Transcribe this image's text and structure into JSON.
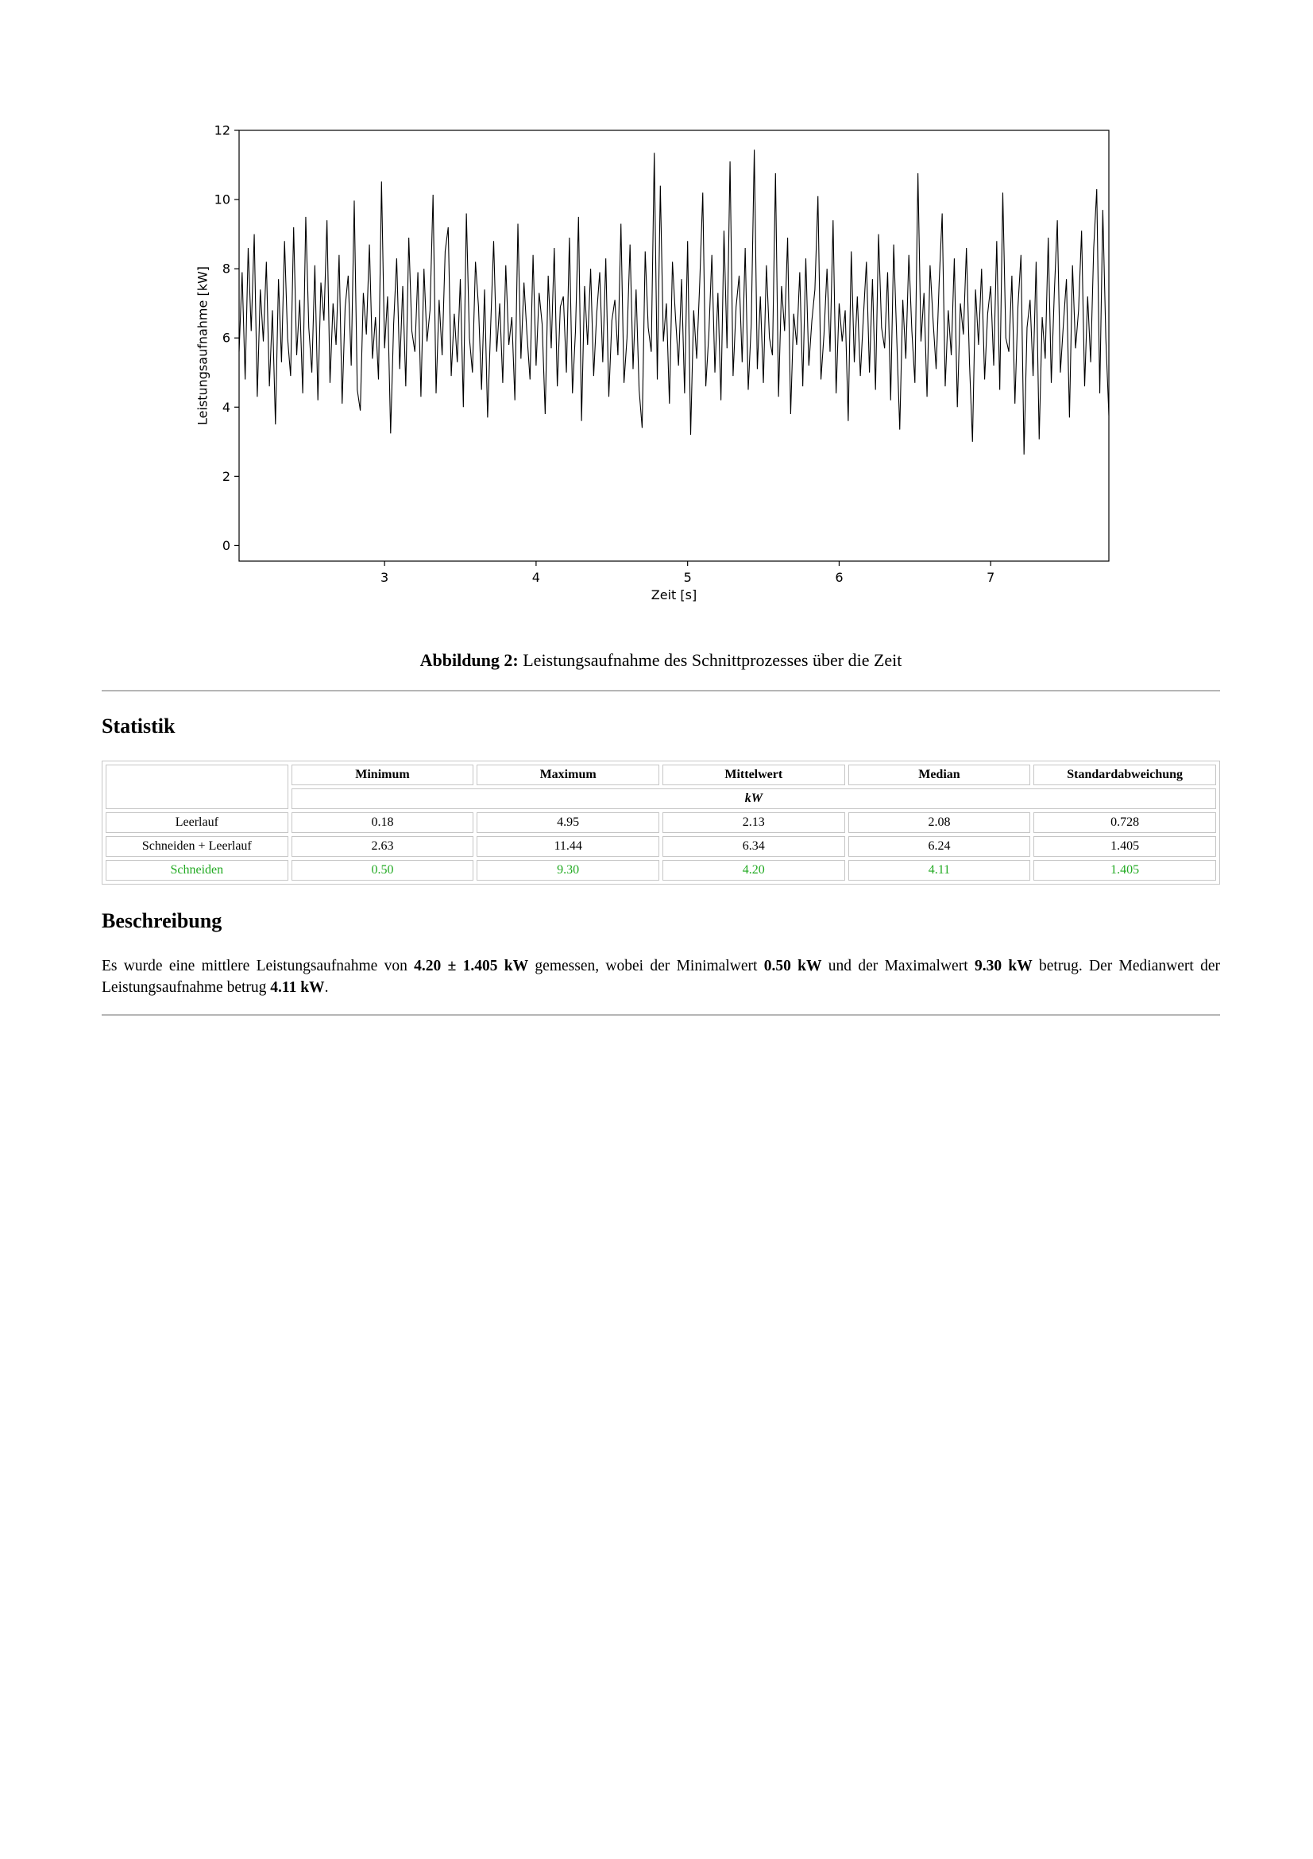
{
  "figure": {
    "label": "Abbildung 2:",
    "caption": "Leistungsaufnahme des Schnittprozesses über die Zeit"
  },
  "statistics": {
    "heading": "Statistik",
    "columns": [
      "Minimum",
      "Maximum",
      "Mittelwert",
      "Median",
      "Standardabweichung"
    ],
    "unit": "kW",
    "rows": [
      {
        "label": "Leerlauf",
        "values": [
          "0.18",
          "4.95",
          "2.13",
          "2.08",
          "0.728"
        ]
      },
      {
        "label": "Schneiden + Leerlauf",
        "values": [
          "2.63",
          "11.44",
          "6.34",
          "6.24",
          "1.405"
        ]
      },
      {
        "label": "Schneiden",
        "values": [
          "0.50",
          "9.30",
          "4.20",
          "4.11",
          "1.405"
        ],
        "highlight": true
      }
    ],
    "highlight_color": "#22aa22"
  },
  "description": {
    "heading": "Beschreibung",
    "t1": "Es wurde eine mittlere Leistungsaufnahme von ",
    "mean": "4.20 ± 1.405 kW",
    "t2": " gemessen, wobei der Minimalwert ",
    "min": "0.50 kW",
    "t3": " und der Maximalwert ",
    "max": "9.30 kW",
    "t4": " betrug. Der Medianwert der Leistungsaufnahme betrug ",
    "median": "4.11 kW",
    "t5": "."
  },
  "chart_data": {
    "type": "line",
    "xlabel": "Zeit [s]",
    "ylabel": "Leistungsaufnahme [kW]",
    "xlim": [
      2.04,
      7.78
    ],
    "ylim": [
      -0.45,
      12.0
    ],
    "xticks": [
      3,
      4,
      5,
      6,
      7
    ],
    "yticks": [
      0,
      2,
      4,
      6,
      8,
      10,
      12
    ],
    "grid": false,
    "line_color": "#000000",
    "series": [
      {
        "x": [
          2.04,
          2.06,
          2.08,
          2.1,
          2.12,
          2.14,
          2.16,
          2.18,
          2.2,
          2.22,
          2.24,
          2.26,
          2.28,
          2.3,
          2.32,
          2.34,
          2.36,
          2.38,
          2.4,
          2.42,
          2.44,
          2.46,
          2.48,
          2.5,
          2.52,
          2.54,
          2.56,
          2.58,
          2.6,
          2.62,
          2.64,
          2.66,
          2.68,
          2.7,
          2.72,
          2.74,
          2.76,
          2.78,
          2.8,
          2.82,
          2.84,
          2.86,
          2.88,
          2.9,
          2.92,
          2.94,
          2.96,
          2.98,
          3.0,
          3.02,
          3.04,
          3.06,
          3.08,
          3.1,
          3.12,
          3.14,
          3.16,
          3.18,
          3.2,
          3.22,
          3.24,
          3.26,
          3.28,
          3.3,
          3.32,
          3.34,
          3.36,
          3.38,
          3.4,
          3.42,
          3.44,
          3.46,
          3.48,
          3.5,
          3.52,
          3.54,
          3.56,
          3.58,
          3.6,
          3.62,
          3.64,
          3.66,
          3.68,
          3.7,
          3.72,
          3.74,
          3.76,
          3.78,
          3.8,
          3.82,
          3.84,
          3.86,
          3.88,
          3.9,
          3.92,
          3.94,
          3.96,
          3.98,
          4.0,
          4.02,
          4.04,
          4.06,
          4.08,
          4.1,
          4.12,
          4.14,
          4.16,
          4.18,
          4.2,
          4.22,
          4.24,
          4.26,
          4.28,
          4.3,
          4.32,
          4.34,
          4.36,
          4.38,
          4.4,
          4.42,
          4.44,
          4.46,
          4.48,
          4.5,
          4.52,
          4.54,
          4.56,
          4.58,
          4.6,
          4.62,
          4.64,
          4.66,
          4.68,
          4.7,
          4.72,
          4.74,
          4.76,
          4.78,
          4.8,
          4.82,
          4.84,
          4.86,
          4.88,
          4.9,
          4.92,
          4.94,
          4.96,
          4.98,
          5.0,
          5.02,
          5.04,
          5.06,
          5.08,
          5.1,
          5.12,
          5.14,
          5.16,
          5.18,
          5.2,
          5.22,
          5.24,
          5.26,
          5.28,
          5.3,
          5.32,
          5.34,
          5.36,
          5.38,
          5.4,
          5.42,
          5.44,
          5.46,
          5.48,
          5.5,
          5.52,
          5.54,
          5.56,
          5.58,
          5.6,
          5.62,
          5.64,
          5.66,
          5.68,
          5.7,
          5.72,
          5.74,
          5.76,
          5.78,
          5.8,
          5.82,
          5.84,
          5.86,
          5.88,
          5.9,
          5.92,
          5.94,
          5.96,
          5.98,
          6.0,
          6.02,
          6.04,
          6.06,
          6.08,
          6.1,
          6.12,
          6.14,
          6.16,
          6.18,
          6.2,
          6.22,
          6.24,
          6.26,
          6.28,
          6.3,
          6.32,
          6.34,
          6.36,
          6.38,
          6.4,
          6.42,
          6.44,
          6.46,
          6.48,
          6.5,
          6.52,
          6.54,
          6.56,
          6.58,
          6.6,
          6.62,
          6.64,
          6.66,
          6.68,
          6.7,
          6.72,
          6.74,
          6.76,
          6.78,
          6.8,
          6.82,
          6.84,
          6.86,
          6.88,
          6.9,
          6.92,
          6.94,
          6.96,
          6.98,
          7.0,
          7.02,
          7.04,
          7.06,
          7.08,
          7.1,
          7.12,
          7.14,
          7.16,
          7.18,
          7.2,
          7.22,
          7.24,
          7.26,
          7.28,
          7.3,
          7.32,
          7.34,
          7.36,
          7.38,
          7.4,
          7.42,
          7.44,
          7.46,
          7.48,
          7.5,
          7.52,
          7.54,
          7.56,
          7.58,
          7.6,
          7.62,
          7.64,
          7.66,
          7.68,
          7.7,
          7.72,
          7.74,
          7.76,
          7.78
        ],
        "y": [
          5.6,
          7.9,
          4.8,
          8.6,
          6.2,
          9.0,
          4.3,
          7.4,
          5.9,
          8.2,
          4.6,
          6.8,
          3.5,
          7.7,
          5.3,
          8.8,
          6.0,
          4.9,
          9.2,
          5.5,
          7.1,
          4.4,
          9.5,
          6.3,
          5.0,
          8.1,
          4.2,
          7.6,
          6.5,
          9.4,
          4.7,
          7.0,
          5.8,
          8.4,
          4.1,
          6.9,
          7.8,
          5.2,
          9.97,
          4.5,
          3.9,
          7.3,
          6.1,
          8.7,
          5.4,
          6.6,
          4.8,
          10.52,
          5.7,
          7.2,
          3.24,
          6.4,
          8.3,
          5.1,
          7.5,
          4.6,
          8.9,
          6.2,
          5.6,
          7.9,
          4.3,
          8.0,
          5.9,
          6.8,
          10.14,
          4.4,
          7.1,
          5.5,
          8.5,
          9.2,
          4.9,
          6.7,
          5.3,
          7.7,
          4.0,
          9.6,
          6.0,
          5.0,
          8.2,
          6.9,
          4.5,
          7.4,
          3.7,
          6.3,
          8.8,
          5.6,
          7.0,
          4.7,
          8.1,
          5.8,
          6.6,
          4.2,
          9.3,
          5.4,
          7.6,
          6.1,
          4.8,
          8.4,
          5.2,
          7.3,
          6.4,
          3.8,
          7.8,
          5.7,
          8.6,
          4.6,
          6.9,
          7.2,
          5.0,
          8.9,
          4.4,
          6.2,
          9.5,
          3.6,
          7.5,
          5.8,
          8.0,
          4.9,
          6.7,
          7.9,
          5.3,
          8.3,
          4.3,
          6.5,
          7.1,
          5.5,
          9.3,
          4.7,
          6.0,
          8.7,
          5.1,
          7.4,
          4.5,
          3.4,
          8.5,
          6.3,
          5.6,
          11.35,
          4.8,
          10.4,
          5.9,
          7.0,
          4.1,
          8.2,
          6.6,
          5.2,
          7.7,
          4.4,
          8.8,
          3.2,
          6.8,
          5.4,
          7.6,
          10.2,
          4.6,
          6.1,
          8.4,
          5.0,
          7.3,
          4.2,
          9.1,
          5.7,
          11.1,
          4.9,
          6.9,
          7.8,
          5.3,
          8.6,
          4.5,
          6.4,
          11.44,
          5.1,
          7.2,
          4.7,
          8.1,
          6.0,
          5.5,
          10.76,
          4.3,
          7.5,
          6.2,
          8.9,
          3.8,
          6.7,
          5.8,
          7.9,
          4.6,
          8.3,
          5.2,
          6.5,
          7.4,
          10.1,
          4.8,
          6.1,
          8.0,
          5.6,
          9.4,
          4.4,
          7.0,
          5.9,
          6.8,
          3.6,
          8.5,
          5.3,
          7.2,
          4.9,
          6.6,
          8.2,
          5.0,
          7.7,
          4.5,
          9.0,
          6.3,
          5.7,
          7.9,
          4.2,
          8.7,
          6.0,
          3.35,
          7.1,
          5.4,
          8.4,
          6.2,
          4.7,
          10.76,
          5.9,
          7.3,
          4.3,
          8.1,
          6.5,
          5.1,
          7.6,
          9.6,
          4.6,
          6.8,
          5.5,
          8.3,
          4.0,
          7.0,
          6.1,
          8.6,
          5.3,
          3.0,
          7.4,
          5.8,
          8.0,
          4.8,
          6.7,
          7.5,
          5.2,
          8.8,
          4.5,
          10.2,
          6.0,
          5.6,
          7.8,
          4.1,
          6.9,
          8.4,
          2.63,
          6.3,
          7.1,
          4.9,
          8.2,
          3.07,
          6.6,
          5.4,
          8.9,
          4.7,
          7.3,
          9.4,
          5.0,
          6.4,
          7.7,
          3.7,
          8.1,
          5.7,
          6.8,
          9.1,
          4.6,
          7.2,
          5.3,
          8.6,
          10.3,
          4.4,
          9.7,
          6.0,
          3.76
        ]
      }
    ]
  }
}
